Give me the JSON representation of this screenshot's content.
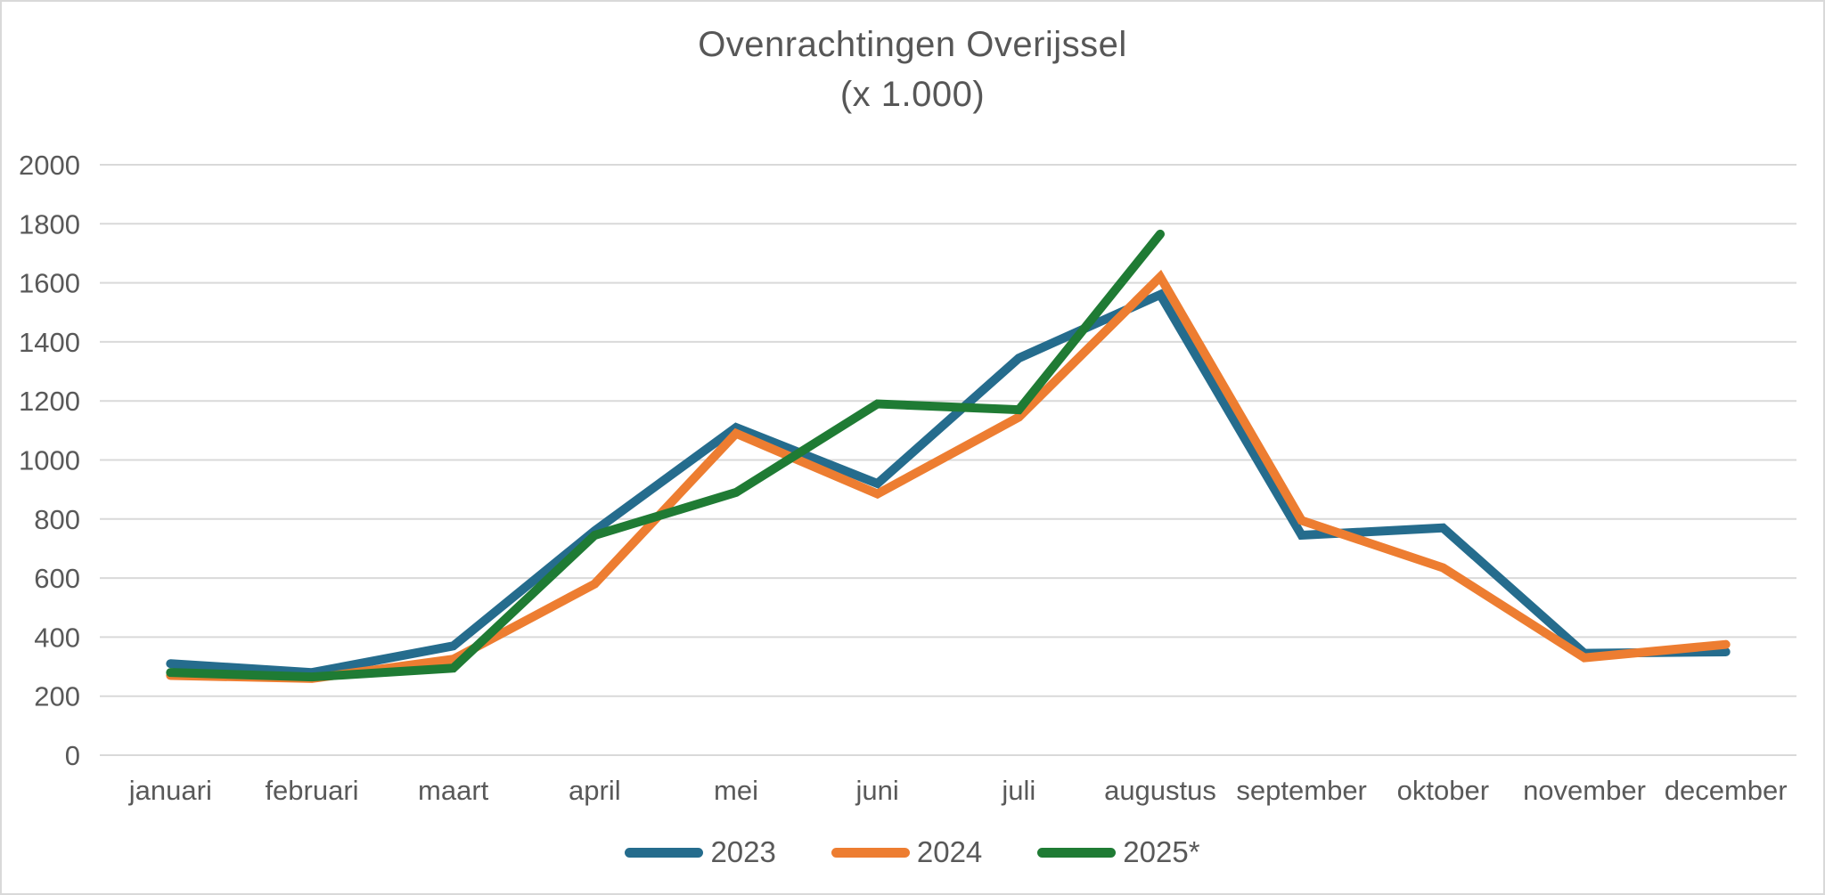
{
  "title": {
    "line1": "Ovenrachtingen Overijssel",
    "line2": "(x 1.000)"
  },
  "chart_data": {
    "type": "line",
    "title": "Ovenrachtingen Overijssel (x 1.000)",
    "categories": [
      "januari",
      "februari",
      "maart",
      "april",
      "mei",
      "juni",
      "juli",
      "augustus",
      "september",
      "oktober",
      "november",
      "december"
    ],
    "series": [
      {
        "name": "2023",
        "color": "#256C8D",
        "values": [
          310,
          280,
          370,
          760,
          1110,
          920,
          1345,
          1560,
          745,
          770,
          345,
          350
        ]
      },
      {
        "name": "2024",
        "color": "#ED7D31",
        "values": [
          270,
          260,
          325,
          580,
          1090,
          885,
          1145,
          1620,
          795,
          635,
          330,
          375
        ]
      },
      {
        "name": "2025*",
        "color": "#1F7B34",
        "values": [
          280,
          265,
          295,
          745,
          890,
          1190,
          1170,
          1765
        ]
      }
    ],
    "xlabel": "",
    "ylabel": "",
    "ylim": [
      0,
      2000
    ],
    "ytick_step": 200,
    "yticks": [
      0,
      200,
      400,
      600,
      800,
      1000,
      1200,
      1400,
      1600,
      1800,
      2000
    ],
    "grid": true,
    "legend_position": "bottom"
  },
  "colors": {
    "grid": "#d9d9d9",
    "axis_text": "#595959",
    "title_text": "#575757",
    "frame_border": "#d9d9d9"
  }
}
